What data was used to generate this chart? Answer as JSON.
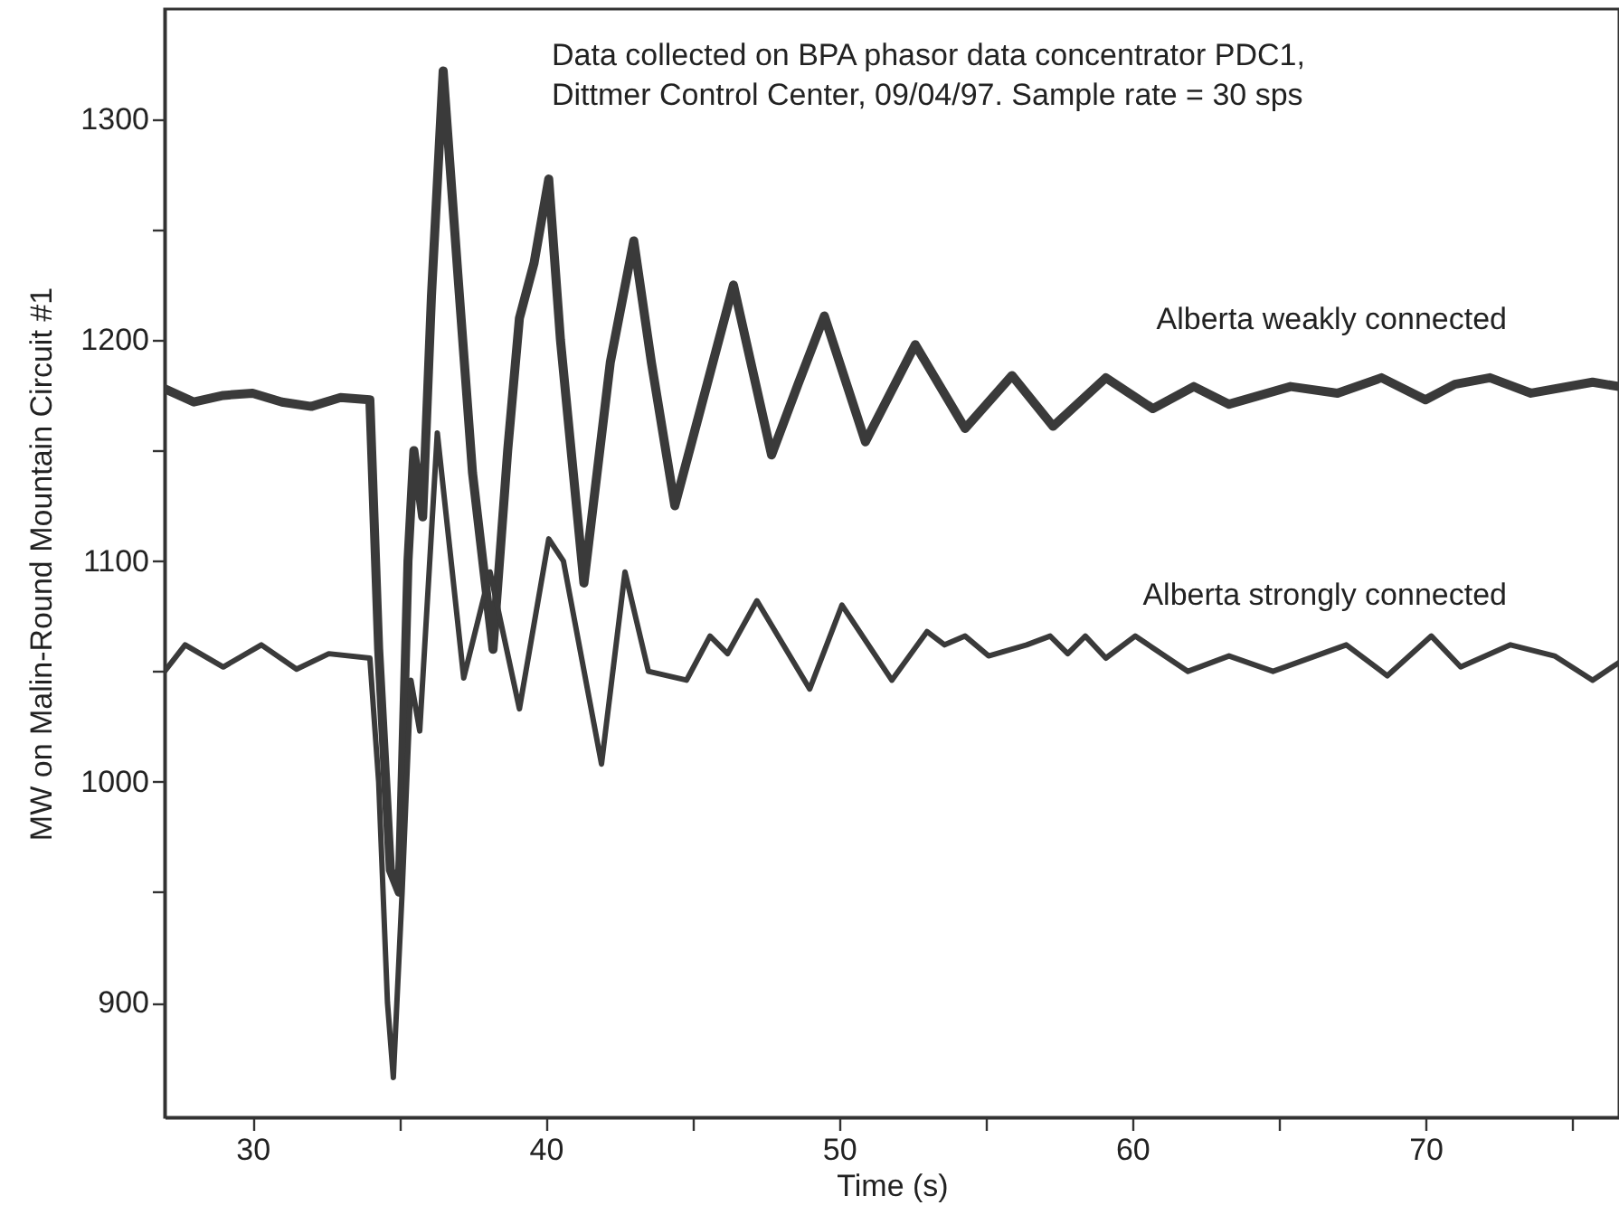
{
  "chart_data": {
    "type": "line",
    "xlabel": "Time (s)",
    "ylabel": "MW on Malin-Round Mountain Circuit #1",
    "annotations": [
      "Data collected on BPA phasor data concentrator PDC1,\nDittmer Control Center, 09/04/97. Sample rate = 30 sps"
    ],
    "xlim": [
      27,
      76.6
    ],
    "ylim": [
      848,
      1350
    ],
    "xticks": [
      30,
      {
        "value": 35,
        "label": null
      },
      40,
      {
        "value": 45,
        "label": null
      },
      50,
      {
        "value": 55,
        "label": null
      },
      60,
      {
        "value": 65,
        "label": null
      },
      70,
      {
        "value": 75,
        "label": null
      }
    ],
    "yticks": [
      900,
      {
        "value": 950,
        "label": null
      },
      1000,
      {
        "value": 1050,
        "label": null
      },
      1100,
      {
        "value": 1150,
        "label": null
      },
      1200,
      {
        "value": 1250,
        "label": null
      },
      1300
    ],
    "grid": false,
    "legend": false,
    "series": [
      {
        "name": "Alberta weakly connected",
        "color": "#3a3a3a",
        "x": [
          27,
          28,
          29,
          30,
          31,
          32,
          33,
          34.0,
          34.3,
          34.7,
          35.0,
          35.3,
          35.5,
          35.8,
          36.1,
          36.5,
          37.0,
          37.5,
          38.2,
          38.7,
          39.1,
          39.6,
          40.1,
          40.5,
          41.3,
          42.2,
          43.0,
          43.6,
          44.4,
          45.3,
          46.4,
          47.7,
          48.6,
          49.5,
          50.9,
          52.6,
          54.3,
          55.9,
          57.3,
          59.1,
          60.7,
          62.1,
          63.3,
          65.4,
          67.0,
          68.5,
          70.0,
          71.0,
          72.2,
          73.6,
          75.7,
          76.6
        ],
        "values": [
          1178,
          1172,
          1175,
          1176,
          1172,
          1170,
          1174,
          1173,
          1060,
          960,
          950,
          1100,
          1150,
          1120,
          1220,
          1322,
          1230,
          1140,
          1060,
          1150,
          1210,
          1235,
          1273,
          1200,
          1090,
          1190,
          1245,
          1190,
          1125,
          1170,
          1225,
          1148,
          1180,
          1211,
          1154,
          1198,
          1160,
          1184,
          1161,
          1183,
          1169,
          1179,
          1171,
          1179,
          1176,
          1183,
          1173,
          1180,
          1183,
          1176,
          1181,
          1179
        ]
      },
      {
        "name": "Alberta strongly connected",
        "color": "#3a3a3a",
        "x": [
          27,
          27.7,
          29.0,
          30.3,
          31.5,
          32.6,
          34.0,
          34.3,
          34.6,
          34.8,
          35.1,
          35.4,
          35.7,
          36.3,
          37.2,
          38.1,
          39.1,
          40.1,
          40.6,
          41.9,
          42.7,
          43.5,
          44.8,
          45.6,
          46.2,
          47.2,
          49.0,
          50.1,
          51.8,
          53.0,
          53.6,
          54.3,
          55.1,
          56.4,
          57.2,
          57.8,
          58.4,
          59.1,
          60.1,
          61.9,
          63.3,
          64.8,
          67.3,
          68.7,
          70.2,
          71.2,
          72.9,
          74.4,
          75.7,
          76.6
        ],
        "values": [
          1050,
          1062,
          1052,
          1062,
          1051,
          1058,
          1056,
          1000,
          900,
          866,
          950,
          1046,
          1023,
          1158,
          1047,
          1095,
          1033,
          1110,
          1100,
          1008,
          1095,
          1050,
          1046,
          1066,
          1058,
          1082,
          1042,
          1080,
          1046,
          1068,
          1062,
          1066,
          1057,
          1062,
          1066,
          1058,
          1066,
          1056,
          1066,
          1050,
          1057,
          1050,
          1062,
          1048,
          1066,
          1052,
          1062,
          1057,
          1046,
          1054
        ]
      }
    ]
  }
}
